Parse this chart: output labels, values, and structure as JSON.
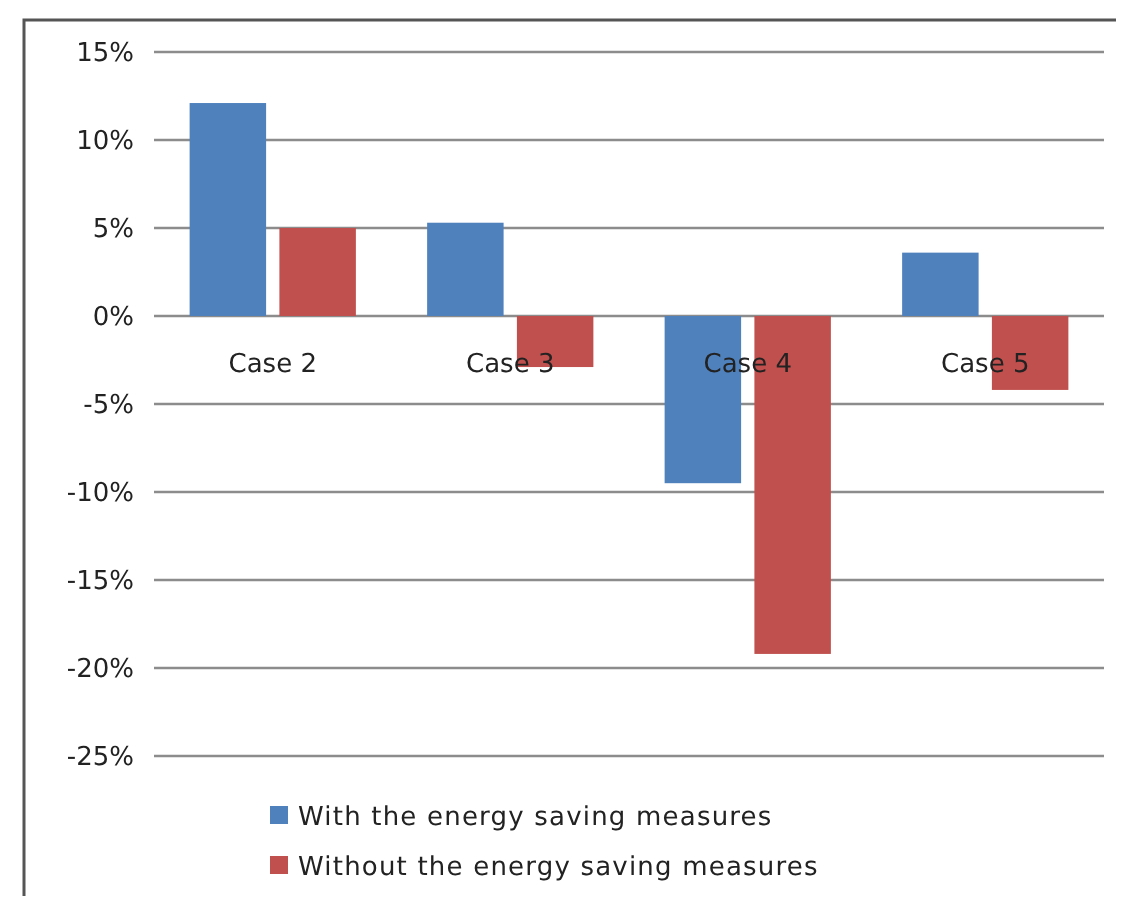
{
  "chart_data": {
    "type": "bar",
    "categories": [
      "Case 2",
      "Case 3",
      "Case 4",
      "Case 5"
    ],
    "series": [
      {
        "name": "With the energy saving measures",
        "color": "#4f81bd",
        "values": [
          12.1,
          5.3,
          -9.5,
          3.6
        ]
      },
      {
        "name": "Without the energy saving measures",
        "color": "#c0504d",
        "values": [
          5.0,
          -2.9,
          -19.2,
          -4.2
        ]
      }
    ],
    "ylim": [
      -25,
      15
    ],
    "yticks": [
      {
        "value": -25,
        "label": "-25%"
      },
      {
        "value": -20,
        "label": "-20%"
      },
      {
        "value": -15,
        "label": "-15%"
      },
      {
        "value": -10,
        "label": "-10%"
      },
      {
        "value": -5,
        "label": "-5%"
      },
      {
        "value": 0,
        "label": "0%"
      },
      {
        "value": 5,
        "label": "5%"
      },
      {
        "value": 10,
        "label": "10%"
      },
      {
        "value": 15,
        "label": "15%"
      }
    ],
    "grid": "y",
    "legend": "bottom"
  }
}
